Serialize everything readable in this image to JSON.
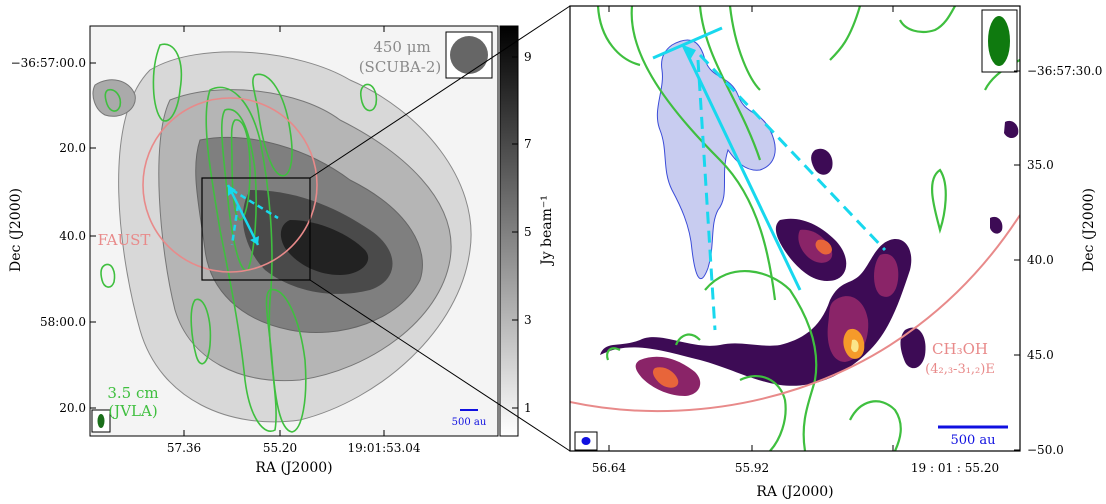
{
  "left_panel": {
    "ylabel": "Dec (J2000)",
    "xlabel": "RA (J2000)",
    "yticks": [
      "−36:57:00.0",
      "20.0",
      "40.0",
      "58:00.0",
      "20.0"
    ],
    "xticks": [
      "57.36",
      "55.20",
      "19:01:53.04"
    ],
    "annot_450_line1": "450 μm",
    "annot_450_line2": "(SCUBA-2)",
    "annot_faust": "FAUST",
    "annot_jvla_line1": "3.5 cm",
    "annot_jvla_line2": "(JVLA)",
    "scalebar": "500 au"
  },
  "colorbar": {
    "label": "Jy beam⁻¹",
    "ticks": [
      "9",
      "7",
      "5",
      "3",
      "1"
    ]
  },
  "right_panel": {
    "ylabel": "Dec (J2000)",
    "xlabel": "RA (J2000)",
    "yticks": [
      "−36:57:30.0",
      "35.0",
      "40.0",
      "45.0",
      "−50.0"
    ],
    "xticks": [
      "56.64",
      "55.92",
      "19 : 01 : 55.20"
    ],
    "annot_line1": "CH₃OH",
    "annot_line2": "(4₂,₃-3₁,₂)E",
    "scalebar": "500 au"
  },
  "colors": {
    "contour_green": "#3fbf3f",
    "ellipse_pink": "#e88a8a",
    "arrow_cyan": "#18d8ee",
    "scale_blue": "#1010e0",
    "outflow_fill": "#c8ccf0"
  }
}
